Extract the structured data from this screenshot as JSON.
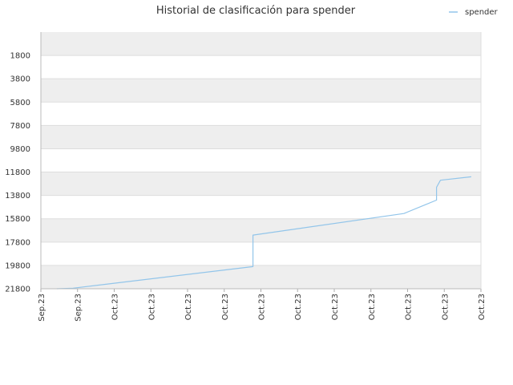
{
  "chart_data": {
    "type": "line",
    "title": "Historial de clasificación para spender",
    "xlabel": "",
    "ylabel": "",
    "y_inverted": true,
    "ylim": [
      21800,
      -200
    ],
    "y_ticks": [
      "1800",
      "3800",
      "5800",
      "7800",
      "9800",
      "11800",
      "13800",
      "15800",
      "17800",
      "19800",
      "21800"
    ],
    "y_tick_values": [
      1800,
      3800,
      5800,
      7800,
      9800,
      11800,
      13800,
      15800,
      17800,
      19800,
      21800
    ],
    "x_ticks": [
      "Sep.23",
      "Sep.23",
      "Oct.23",
      "Oct.23",
      "Oct.23",
      "Oct.23",
      "Oct.23",
      "Oct.23",
      "Oct.23",
      "Oct.23",
      "Oct.23",
      "Oct.23",
      "Oct.23"
    ],
    "x_tick_fractions": [
      0,
      0.0833,
      0.1667,
      0.25,
      0.3333,
      0.4167,
      0.5,
      0.5833,
      0.6667,
      0.75,
      0.8333,
      0.9167,
      1
    ],
    "grid": true,
    "band_colors": [
      "#eeeeee",
      "#ffffff"
    ],
    "legend_position": "top-right",
    "series": [
      {
        "name": "spender",
        "color": "#92c5ea",
        "points": [
          {
            "x": 0.036,
            "y": 21800
          },
          {
            "x": 0.073,
            "y": 21750
          },
          {
            "x": 0.482,
            "y": 19900
          },
          {
            "x": 0.482,
            "y": 17200
          },
          {
            "x": 0.825,
            "y": 15350
          },
          {
            "x": 0.899,
            "y": 14200
          },
          {
            "x": 0.899,
            "y": 13100
          },
          {
            "x": 0.908,
            "y": 12500
          },
          {
            "x": 0.978,
            "y": 12200
          }
        ]
      }
    ]
  }
}
